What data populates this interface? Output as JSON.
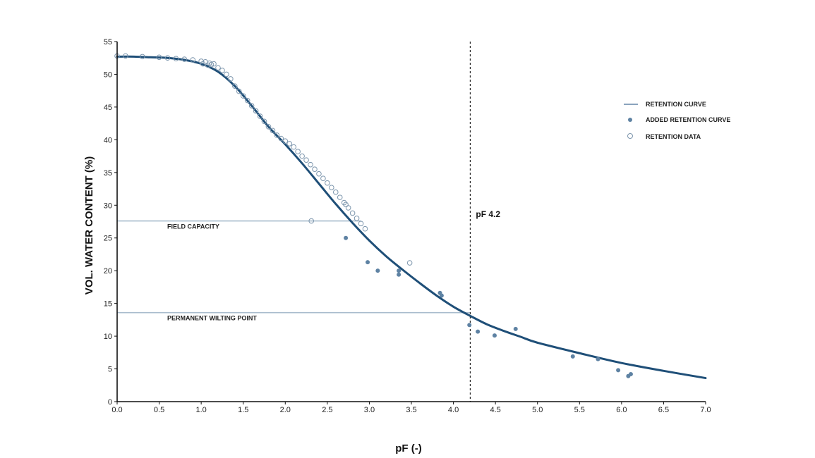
{
  "chart_data": {
    "type": "scatter",
    "title": "",
    "xlabel": "pF (-)",
    "ylabel": "VOL. WATER CONTENT (%)",
    "xlim": [
      0,
      7
    ],
    "ylim": [
      0,
      55
    ],
    "xticks": [
      "0.0",
      "0.5",
      "1.0",
      "1.5",
      "2.0",
      "2.5",
      "3.0",
      "3.5",
      "4.0",
      "4.5",
      "5.0",
      "5.5",
      "6.0",
      "6.5",
      "7.0"
    ],
    "yticks": [
      "0",
      "5",
      "10",
      "15",
      "20",
      "25",
      "30",
      "35",
      "40",
      "45",
      "50",
      "55"
    ],
    "grid": false,
    "legend_position": "right",
    "colors": {
      "retention_curve": "#1f4f78",
      "legend_line": "#8aa3bd",
      "added_points": "#5e82a3",
      "retention_data": "#7d96ad",
      "reference_lines": "#a9bccd",
      "vline": "#222222"
    },
    "legend": [
      {
        "label": "RETENTION CURVE",
        "marker": "line"
      },
      {
        "label": "ADDED RETENTION CURVE",
        "marker": "filled-dot"
      },
      {
        "label": "RETENTION DATA",
        "marker": "open-circle"
      }
    ],
    "retention_curve": {
      "x": [
        0.0,
        0.2,
        0.4,
        0.6,
        0.8,
        1.0,
        1.2,
        1.4,
        1.6,
        1.8,
        2.0,
        2.2,
        2.4,
        2.6,
        2.8,
        3.0,
        3.2,
        3.4,
        3.6,
        3.8,
        4.0,
        4.2,
        4.4,
        4.6,
        4.8,
        5.0,
        5.5,
        6.0,
        6.5,
        7.0
      ],
      "y": [
        52.7,
        52.7,
        52.6,
        52.5,
        52.2,
        51.6,
        50.4,
        48.2,
        45.2,
        42.0,
        39.3,
        36.4,
        33.3,
        30.2,
        27.3,
        24.6,
        22.2,
        20.1,
        18.1,
        16.2,
        14.5,
        13.1,
        11.8,
        10.8,
        9.9,
        9.0,
        7.4,
        5.9,
        4.7,
        3.6
      ]
    },
    "added_retention_curve": {
      "x": [
        2.72,
        2.98,
        3.1,
        3.35,
        3.35,
        3.84,
        3.86,
        4.19,
        4.29,
        4.49,
        4.74,
        5.42,
        5.72,
        5.96,
        6.08,
        6.11
      ],
      "y": [
        25.0,
        21.3,
        20.0,
        20.0,
        19.4,
        16.6,
        16.2,
        11.7,
        10.7,
        10.1,
        11.1,
        6.9,
        6.5,
        4.8,
        3.9,
        4.2
      ]
    },
    "retention_data": {
      "x": [
        0.0,
        0.1,
        0.3,
        0.5,
        0.6,
        0.7,
        0.8,
        0.9,
        1.0,
        1.02,
        1.05,
        1.08,
        1.1,
        1.12,
        1.15,
        1.2,
        1.25,
        1.3,
        1.35,
        1.4,
        1.45,
        1.5,
        1.55,
        1.6,
        1.65,
        1.7,
        1.75,
        1.8,
        1.85,
        1.9,
        1.95,
        2.0,
        2.05,
        2.1,
        2.15,
        2.2,
        2.25,
        2.3,
        2.35,
        2.4,
        2.45,
        2.5,
        2.55,
        2.6,
        2.65,
        2.7,
        2.72,
        2.75,
        2.8,
        2.85,
        2.9,
        2.95,
        2.31,
        3.48
      ],
      "y": [
        52.8,
        52.8,
        52.7,
        52.6,
        52.5,
        52.4,
        52.3,
        52.2,
        52.0,
        51.6,
        51.9,
        51.4,
        51.7,
        51.5,
        51.6,
        51.0,
        50.6,
        50.0,
        49.3,
        48.2,
        47.4,
        46.7,
        46.0,
        45.2,
        44.4,
        43.6,
        42.8,
        42.0,
        41.4,
        40.7,
        40.2,
        39.8,
        39.4,
        38.9,
        38.2,
        37.5,
        36.9,
        36.2,
        35.5,
        34.8,
        34.1,
        33.4,
        32.7,
        32.0,
        31.2,
        30.4,
        30.1,
        29.6,
        28.8,
        28.0,
        27.2,
        26.4,
        27.6,
        21.2
      ]
    },
    "reference_lines": [
      {
        "label": "FIELD CAPACITY",
        "y": 27.6,
        "x_end": 2.9
      },
      {
        "label": "PERMANENT WILTING POINT",
        "y": 13.6,
        "x_end": 4.2
      }
    ],
    "vline": {
      "label": "pF 4.2",
      "x": 4.2
    }
  }
}
